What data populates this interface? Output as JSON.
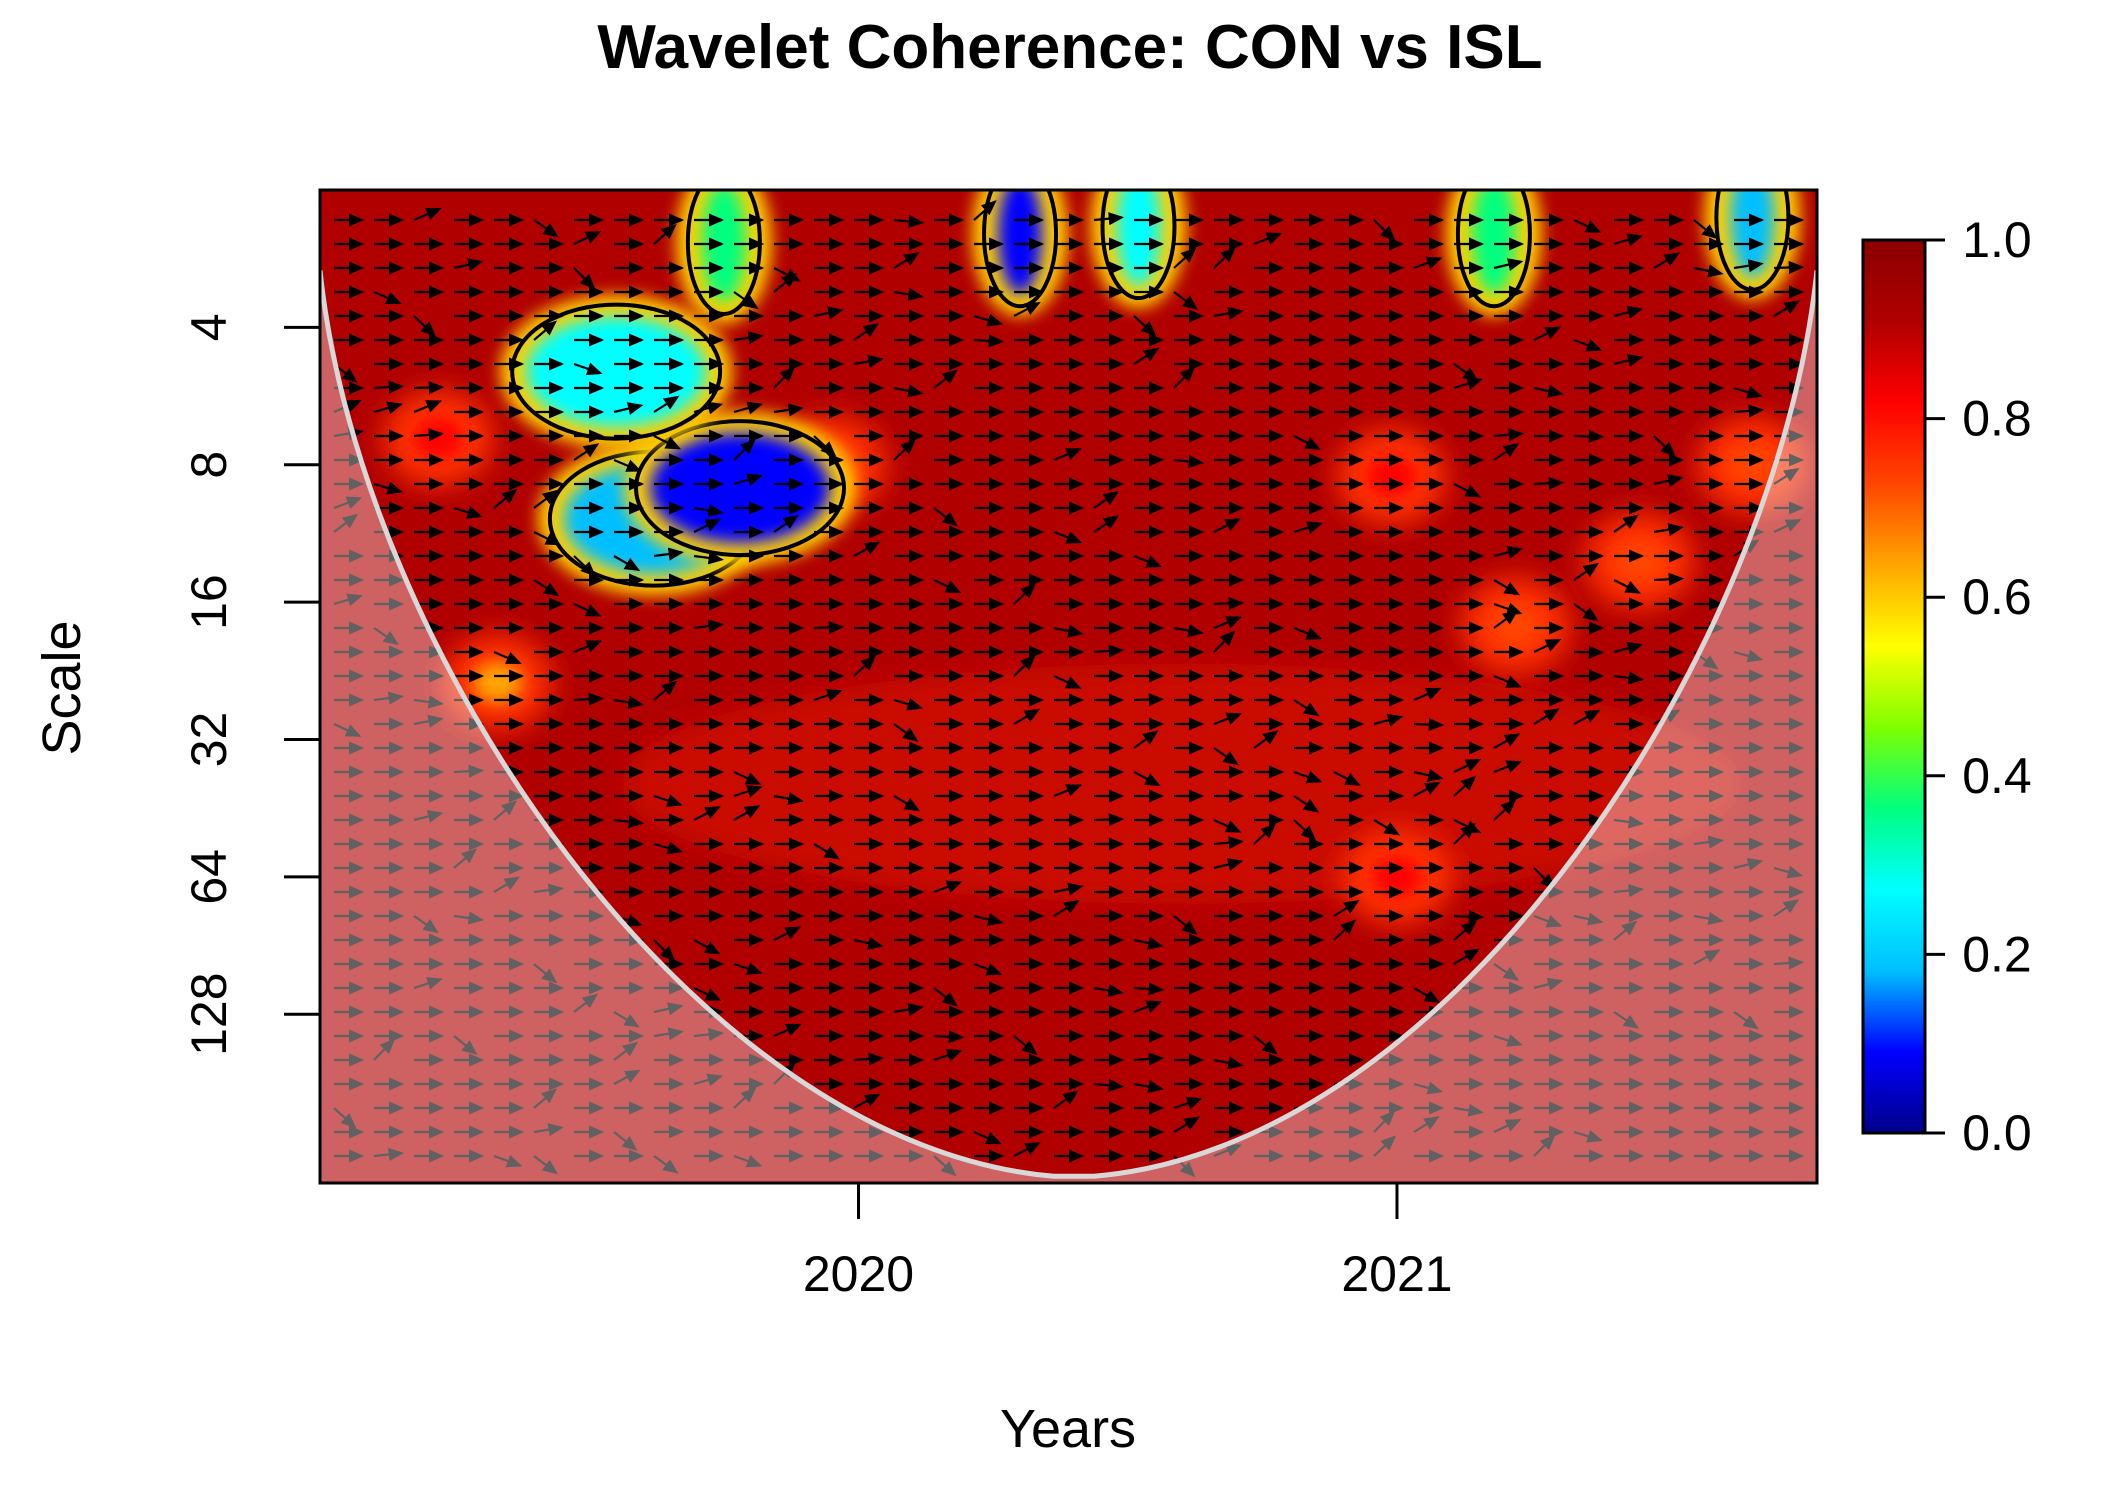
{
  "chart_data": {
    "type": "heatmap",
    "title": "Wavelet Coherence: CON vs ISL",
    "xlabel": "Years",
    "ylabel": "Scale",
    "x_ticks": [
      {
        "value": 2020,
        "label": "2020"
      },
      {
        "value": 2021,
        "label": "2021"
      }
    ],
    "xlim": [
      2019.0,
      2021.78
    ],
    "y_scale": "log2",
    "y_ticks": [
      {
        "value": 4,
        "label": "4"
      },
      {
        "value": 8,
        "label": "8"
      },
      {
        "value": 16,
        "label": "16"
      },
      {
        "value": 32,
        "label": "32"
      },
      {
        "value": 64,
        "label": "64"
      },
      {
        "value": 128,
        "label": "128"
      }
    ],
    "ylim": [
      2.0,
      300
    ],
    "colorbar": {
      "range": [
        0.0,
        1.0
      ],
      "ticks": [
        "0.0",
        "0.2",
        "0.4",
        "0.6",
        "0.8",
        "1.0"
      ],
      "palette": [
        "#00008b",
        "#0000ff",
        "#00bfff",
        "#00ffff",
        "#00ff7f",
        "#7fff00",
        "#ffff00",
        "#ffa500",
        "#ff4500",
        "#ff0000",
        "#b00000",
        "#8b0000"
      ]
    },
    "background_coherence": 0.95,
    "low_coherence_regions": [
      {
        "year": 2019.62,
        "scale": 10.5,
        "coherence": 0.15,
        "label": "deep-blue-patch"
      },
      {
        "year": 2019.78,
        "scale": 9.0,
        "coherence": 0.12,
        "label": "blue-core"
      },
      {
        "year": 2019.55,
        "scale": 5.0,
        "coherence": 0.3,
        "label": "cyan-tongue"
      },
      {
        "year": 2019.75,
        "scale": 2.6,
        "coherence": 0.35,
        "label": "cyan-fringe-a"
      },
      {
        "year": 2020.3,
        "scale": 2.5,
        "coherence": 0.1,
        "label": "blue-fringe-b"
      },
      {
        "year": 2020.52,
        "scale": 2.4,
        "coherence": 0.3,
        "label": "cyan-fringe-c"
      },
      {
        "year": 2021.18,
        "scale": 2.5,
        "coherence": 0.35,
        "label": "cyan-fringe-d"
      },
      {
        "year": 2021.66,
        "scale": 2.3,
        "coherence": 0.2,
        "label": "blue-fringe-e"
      }
    ],
    "moderate_coherence_regions": [
      {
        "year": 2019.33,
        "scale": 24,
        "coherence": 0.65
      },
      {
        "year": 2021.22,
        "scale": 18,
        "coherence": 0.75
      },
      {
        "year": 2021.0,
        "scale": 64,
        "coherence": 0.82
      },
      {
        "year": 2019.95,
        "scale": 8,
        "coherence": 0.72
      },
      {
        "year": 2021.45,
        "scale": 13,
        "coherence": 0.75
      },
      {
        "year": 2021.66,
        "scale": 8,
        "coherence": 0.7
      },
      {
        "year": 2019.22,
        "scale": 7,
        "coherence": 0.78
      },
      {
        "year": 2020.99,
        "scale": 8.5,
        "coherence": 0.78
      }
    ],
    "cone_of_influence": {
      "vertex_year": 2020.4,
      "vertex_scale": 290,
      "left_edge_year": 2019.0,
      "right_edge_year": 2021.78,
      "edge_scale": 3.0
    },
    "phase_arrows": "predominantly right-pointing (in-phase)"
  }
}
